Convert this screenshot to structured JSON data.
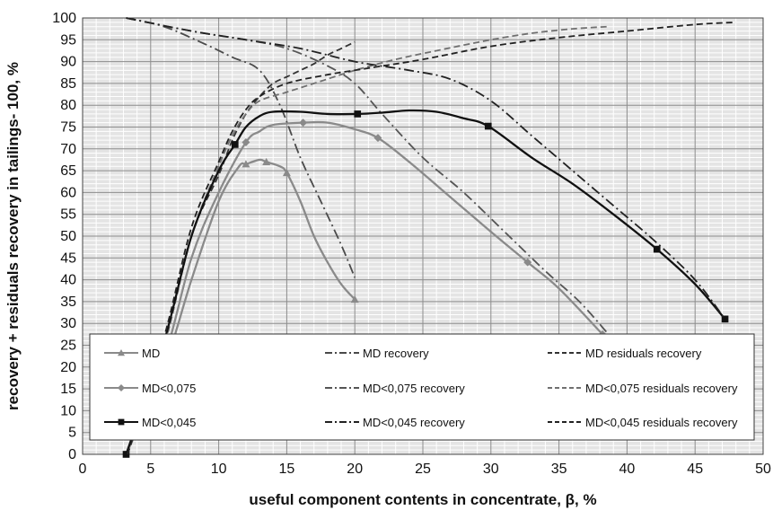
{
  "chart_data": {
    "type": "line",
    "xlabel": "useful component contents in concentrate, β,  %",
    "ylabel": "recovery + residuals recovery in tailings- 100, %",
    "xlim": [
      0,
      50
    ],
    "ylim": [
      0,
      100
    ],
    "xticks": [
      0,
      5,
      10,
      15,
      20,
      25,
      30,
      35,
      40,
      45,
      50
    ],
    "yticks": [
      0,
      5,
      10,
      15,
      20,
      25,
      30,
      35,
      40,
      45,
      50,
      55,
      60,
      65,
      70,
      75,
      80,
      85,
      90,
      95,
      100
    ],
    "grid": true,
    "legend_position": "lower-center",
    "series": [
      {
        "name": "MD",
        "color": "#8a8a8a",
        "dash": "solid",
        "marker": "triangle",
        "points": [
          [
            3.2,
            0
          ],
          [
            6,
            20
          ],
          [
            8,
            40
          ],
          [
            10,
            58
          ],
          [
            11.5,
            66
          ],
          [
            12,
            66.5
          ],
          [
            13,
            67.5
          ],
          [
            13.5,
            67
          ],
          [
            14.5,
            66
          ],
          [
            15,
            64.5
          ],
          [
            16,
            58
          ],
          [
            17,
            50
          ],
          [
            18,
            44
          ],
          [
            19,
            39
          ],
          [
            20,
            35.5
          ]
        ],
        "marker_points": [
          [
            12,
            66.5
          ],
          [
            13.5,
            67
          ],
          [
            15,
            64.5
          ],
          [
            20,
            35.5
          ]
        ]
      },
      {
        "name": "MD recovery",
        "color": "#4a4a4a",
        "dash": "dashdot",
        "marker": "none",
        "points": [
          [
            3.2,
            100
          ],
          [
            6,
            98
          ],
          [
            9,
            94
          ],
          [
            11,
            91
          ],
          [
            13,
            88
          ],
          [
            14.5,
            80
          ],
          [
            16,
            68
          ],
          [
            17.5,
            58
          ],
          [
            19,
            48
          ],
          [
            20,
            40.5
          ]
        ]
      },
      {
        "name": "MD residuals recovery",
        "color": "#333333",
        "dash": "dashed",
        "marker": "none",
        "points": [
          [
            3.3,
            0
          ],
          [
            6,
            25
          ],
          [
            8,
            50
          ],
          [
            10,
            64
          ],
          [
            11,
            72
          ],
          [
            12,
            78
          ],
          [
            13,
            82
          ],
          [
            14,
            85
          ],
          [
            15,
            86.5
          ],
          [
            16,
            88
          ],
          [
            17,
            89.5
          ],
          [
            18,
            91.5
          ],
          [
            19,
            93
          ],
          [
            20,
            94.5
          ]
        ]
      },
      {
        "name": "MD<0,075",
        "color": "#8a8a8a",
        "dash": "solid",
        "marker": "diamond",
        "points": [
          [
            3.2,
            0
          ],
          [
            6,
            22
          ],
          [
            8,
            45
          ],
          [
            10,
            60
          ],
          [
            12,
            71.5
          ],
          [
            13,
            74
          ],
          [
            14,
            75.5
          ],
          [
            16.2,
            76
          ],
          [
            18,
            76
          ],
          [
            20,
            74.5
          ],
          [
            21.7,
            72.5
          ],
          [
            24,
            67
          ],
          [
            27,
            59
          ],
          [
            30,
            51
          ],
          [
            32.7,
            44
          ],
          [
            35,
            38
          ],
          [
            38.2,
            27.5
          ]
        ],
        "marker_points": [
          [
            12,
            71.5
          ],
          [
            16.2,
            76
          ],
          [
            21.7,
            72.5
          ],
          [
            32.7,
            44
          ],
          [
            38.2,
            27.5
          ]
        ]
      },
      {
        "name": "MD<0,075 recovery",
        "color": "#555555",
        "dash": "dashdot",
        "marker": "none",
        "points": [
          [
            3.2,
            100
          ],
          [
            8,
            97
          ],
          [
            12,
            95
          ],
          [
            15,
            93
          ],
          [
            18,
            89
          ],
          [
            20,
            85
          ],
          [
            22,
            78
          ],
          [
            25,
            68
          ],
          [
            28,
            60
          ],
          [
            31,
            51
          ],
          [
            34,
            42
          ],
          [
            36.5,
            35
          ],
          [
            38.5,
            28
          ]
        ]
      },
      {
        "name": "MD<0,075 residuals recovery",
        "color": "#707070",
        "dash": "dashed",
        "marker": "none",
        "points": [
          [
            3.3,
            0
          ],
          [
            6,
            25
          ],
          [
            8,
            50
          ],
          [
            10,
            66
          ],
          [
            11,
            73
          ],
          [
            12,
            78
          ],
          [
            13,
            81
          ],
          [
            15,
            83
          ],
          [
            17,
            85
          ],
          [
            20,
            88
          ],
          [
            23,
            90.5
          ],
          [
            26,
            92.5
          ],
          [
            30,
            95
          ],
          [
            33,
            96.5
          ],
          [
            36,
            97.5
          ],
          [
            38.5,
            98
          ]
        ]
      },
      {
        "name": "MD<0,045",
        "color": "#111111",
        "dash": "solid",
        "marker": "square",
        "points": [
          [
            3.2,
            0
          ],
          [
            6,
            26
          ],
          [
            8,
            50
          ],
          [
            10,
            65
          ],
          [
            11.2,
            71
          ],
          [
            12,
            75
          ],
          [
            13,
            77.5
          ],
          [
            14,
            78.5
          ],
          [
            16,
            78.5
          ],
          [
            18,
            78
          ],
          [
            20.2,
            78
          ],
          [
            22,
            78.3
          ],
          [
            24,
            78.8
          ],
          [
            26,
            78.5
          ],
          [
            28,
            77
          ],
          [
            29.8,
            75.2
          ],
          [
            33,
            68
          ],
          [
            36,
            62
          ],
          [
            39,
            55
          ],
          [
            42.2,
            47
          ],
          [
            45,
            39
          ],
          [
            47.2,
            31
          ]
        ],
        "marker_points": [
          [
            3.2,
            0
          ],
          [
            11.2,
            71
          ],
          [
            20.2,
            78
          ],
          [
            29.8,
            75.2
          ],
          [
            42.2,
            47
          ],
          [
            47.2,
            31
          ]
        ]
      },
      {
        "name": "MD<0,045 recovery",
        "color": "#222222",
        "dash": "dashdot",
        "marker": "none",
        "points": [
          [
            3.2,
            100
          ],
          [
            8,
            97
          ],
          [
            12,
            95
          ],
          [
            16,
            93
          ],
          [
            20,
            90
          ],
          [
            24,
            88
          ],
          [
            27,
            86
          ],
          [
            30,
            81
          ],
          [
            33,
            73
          ],
          [
            36,
            65
          ],
          [
            39,
            57
          ],
          [
            42,
            49
          ],
          [
            45,
            40
          ],
          [
            47.2,
            31
          ]
        ]
      },
      {
        "name": "MD<0,045 residuals recovery",
        "color": "#222222",
        "dash": "dashed",
        "marker": "none",
        "points": [
          [
            3.3,
            0
          ],
          [
            6,
            27
          ],
          [
            8,
            52
          ],
          [
            10,
            67
          ],
          [
            11,
            74
          ],
          [
            12,
            79
          ],
          [
            13,
            82
          ],
          [
            15,
            85
          ],
          [
            18,
            87
          ],
          [
            21,
            88.5
          ],
          [
            25,
            90.5
          ],
          [
            30,
            93.5
          ],
          [
            35,
            95.5
          ],
          [
            40,
            97
          ],
          [
            45,
            98.5
          ],
          [
            48,
            99
          ]
        ]
      }
    ]
  }
}
